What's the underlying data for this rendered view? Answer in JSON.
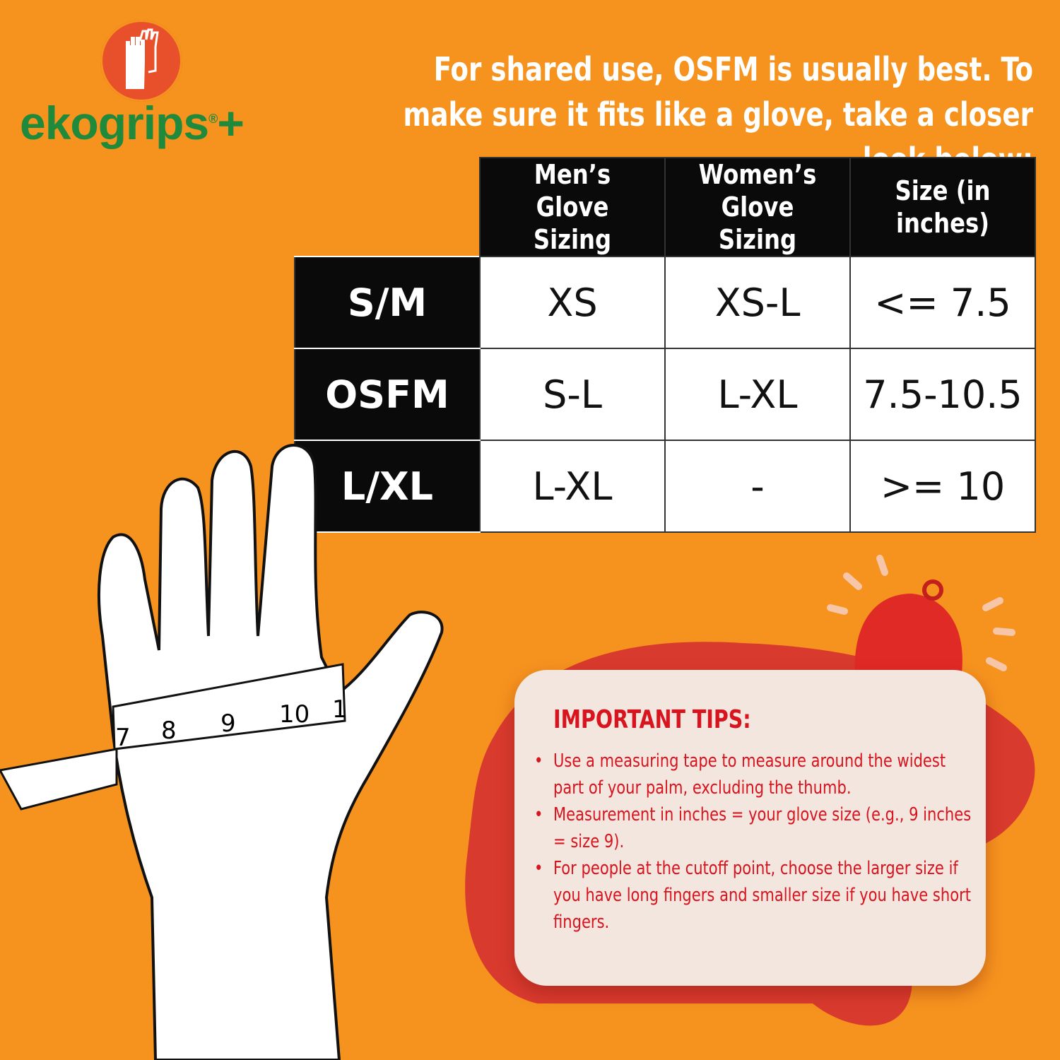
{
  "brand": {
    "name": "ekogrips",
    "mark": "®",
    "suffix": "+",
    "icon": "gloves-icon",
    "colors": {
      "green": "#1f8a3c",
      "circle": "#e8502b"
    }
  },
  "headline": "For shared use, OSFM is usually best. To make sure it fits like a glove, take a closer look below:",
  "table": {
    "headers": [
      "Men’s Glove Sizing",
      "Women’s Glove Sizing",
      "Size (in inches)"
    ],
    "rows": [
      {
        "label": "S/M",
        "cells": [
          "XS",
          "XS-L",
          "<= 7.5"
        ]
      },
      {
        "label": "OSFM",
        "cells": [
          "S-L",
          "L-XL",
          "7.5-10.5"
        ]
      },
      {
        "label": "L/XL",
        "cells": [
          "L-XL",
          "-",
          ">= 10"
        ]
      }
    ]
  },
  "illustration": {
    "tape_numbers": [
      "7",
      "8",
      "9",
      "10",
      "1"
    ],
    "icon": "hand-with-measuring-tape-icon"
  },
  "tips": {
    "title": "IMPORTANT TIPS:",
    "icon": "bell-icon",
    "items": [
      "Use a measuring tape to measure around the widest part of your palm, excluding the thumb.",
      "Measurement in inches = your glove size (e.g., 9 inches = size 9).",
      "For people at the cutoff point, choose the larger size if you have long fingers and smaller size if you have short fingers."
    ]
  },
  "colors": {
    "background": "#f6931f",
    "tips_text": "#d8141e",
    "card": "#f3e6df",
    "blob": "#d93a2e"
  }
}
